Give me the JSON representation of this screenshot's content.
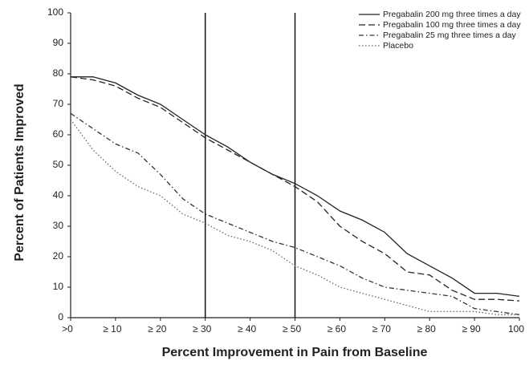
{
  "chart_data": {
    "type": "line",
    "x_label": "Percent Improvement in Pain from Baseline",
    "y_label": "Percent of Patients Improved",
    "x": [
      0,
      5,
      10,
      15,
      20,
      25,
      30,
      35,
      40,
      45,
      50,
      55,
      60,
      65,
      70,
      75,
      80,
      85,
      90,
      95,
      100
    ],
    "series": [
      {
        "name": "Pregabalin 200 mg three times a day",
        "color": "#222222",
        "dash": "solid",
        "values": [
          79,
          79,
          77,
          73,
          70,
          65,
          60,
          56,
          51,
          47,
          44,
          40,
          35,
          32,
          28,
          21,
          17,
          13,
          8,
          8,
          7
        ]
      },
      {
        "name": "Pregabalin 100 mg three times a day",
        "color": "#222222",
        "dash": "dashed",
        "values": [
          79,
          78,
          76,
          72,
          69,
          64,
          59,
          55,
          51,
          47,
          43,
          38,
          30,
          25,
          21,
          15,
          14,
          9,
          6,
          6,
          5.5
        ]
      },
      {
        "name": "Pregabalin 25 mg three times a day",
        "color": "#333333",
        "dash": "dashdot",
        "values": [
          67,
          62,
          57,
          54,
          47,
          39,
          34,
          31,
          28,
          25,
          23,
          20,
          17,
          13,
          10,
          9,
          8,
          7,
          3,
          2,
          1
        ]
      },
      {
        "name": "Placebo",
        "color": "#666666",
        "dash": "dotted",
        "values": [
          65,
          55,
          48,
          43,
          40,
          34,
          31,
          27,
          25,
          22,
          17,
          14,
          10,
          8,
          6,
          4,
          2,
          2,
          2,
          1,
          1
        ]
      }
    ],
    "xlim": [
      0,
      100
    ],
    "ylim": [
      0,
      100
    ],
    "xticks": [
      {
        "value": 0,
        "label": ">0"
      },
      {
        "value": 10,
        "label": "≥ 10"
      },
      {
        "value": 20,
        "label": "≥ 20"
      },
      {
        "value": 30,
        "label": "≥ 30"
      },
      {
        "value": 40,
        "label": "≥ 40"
      },
      {
        "value": 50,
        "label": "≥ 50"
      },
      {
        "value": 60,
        "label": "≥ 60"
      },
      {
        "value": 70,
        "label": "≥ 70"
      },
      {
        "value": 80,
        "label": "≥ 80"
      },
      {
        "value": 90,
        "label": "≥ 90"
      },
      100
    ],
    "yticks": [
      0,
      10,
      20,
      30,
      40,
      50,
      60,
      70,
      80,
      90,
      100
    ],
    "vlines": [
      30,
      50
    ],
    "legend": "upper right",
    "grid": false
  }
}
